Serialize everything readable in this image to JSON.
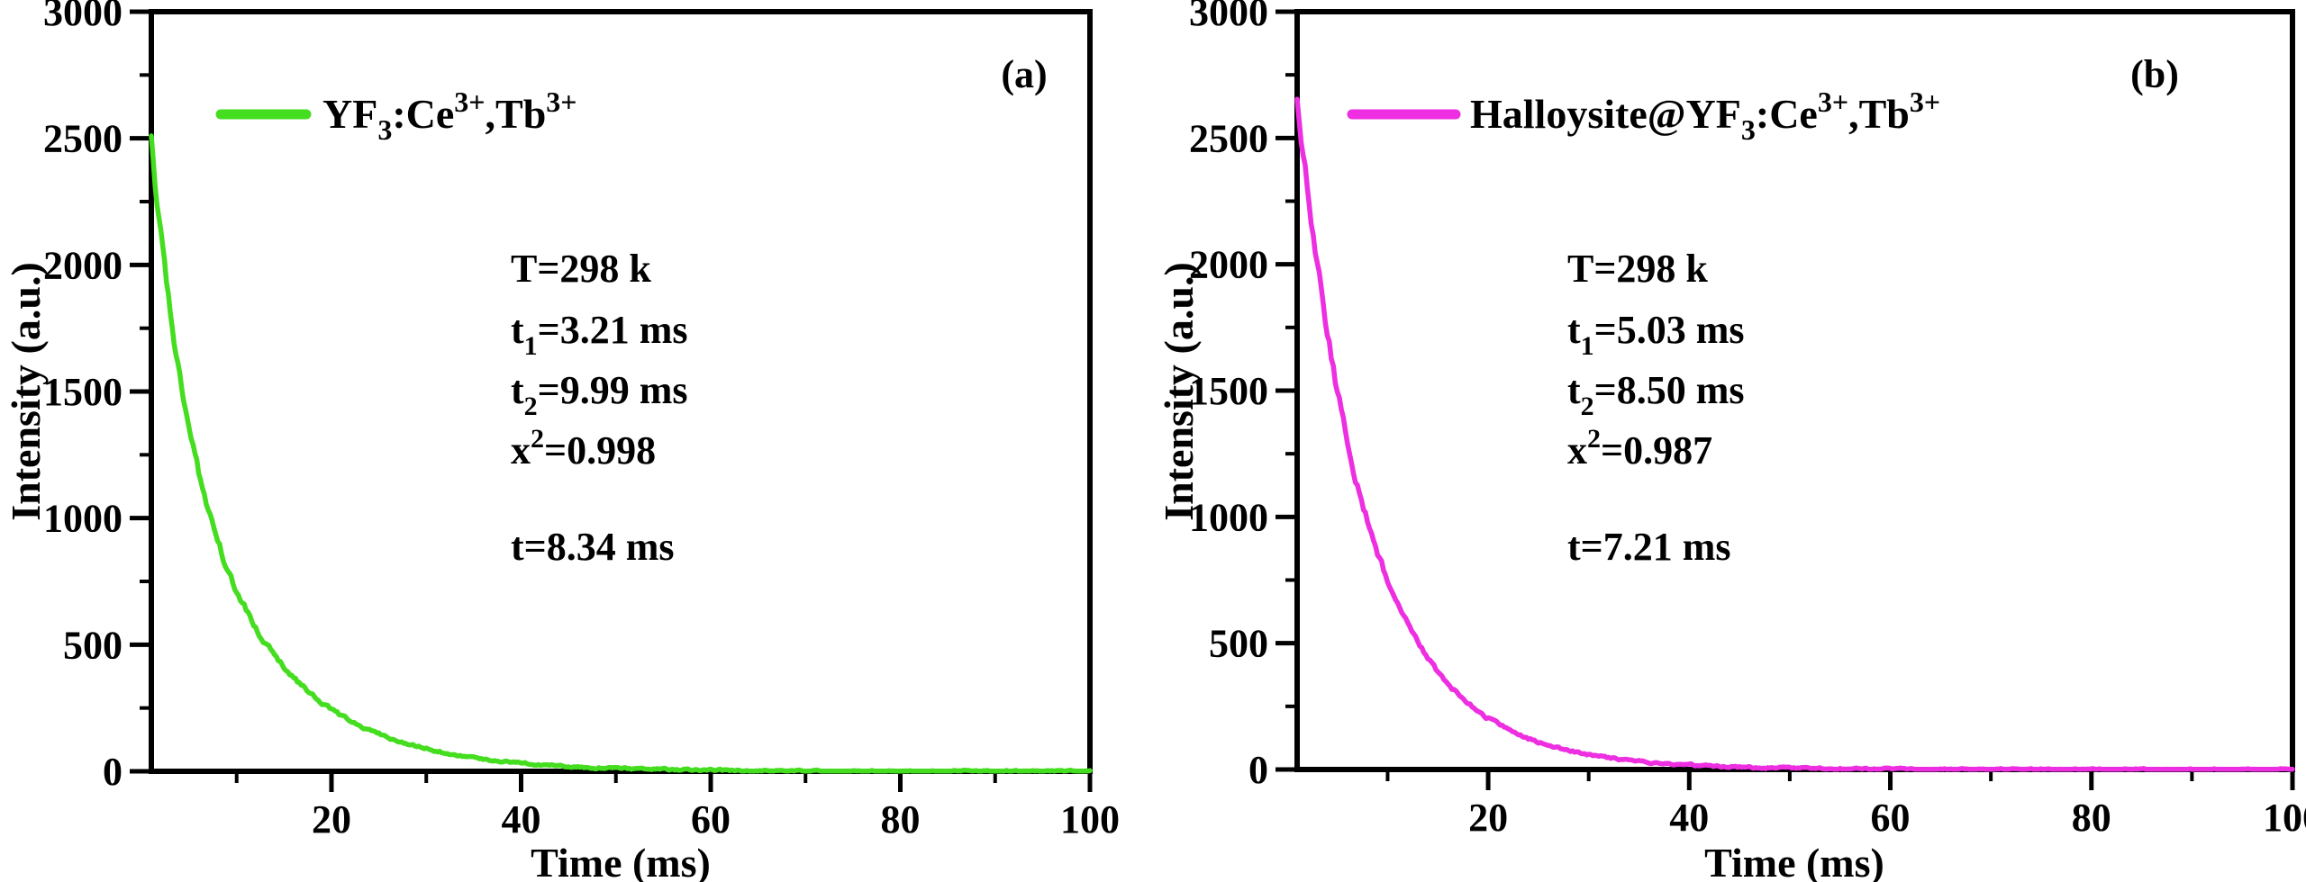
{
  "figure_background": "#ffffff",
  "axis_color": "#000000",
  "chart_data": [
    {
      "panel_label": "(a)",
      "type": "line",
      "xlabel": "Time (ms)",
      "ylabel": "Intensity (a.u.)",
      "xlim": [
        1,
        100
      ],
      "ylim": [
        0,
        3000
      ],
      "x_major_ticks": [
        20,
        40,
        60,
        80,
        100
      ],
      "x_minor_ticks": [
        10,
        30,
        50,
        70,
        90
      ],
      "y_major_ticks": [
        0,
        500,
        1000,
        1500,
        2000,
        2500,
        3000
      ],
      "y_minor_ticks": [
        250,
        750,
        1250,
        1750,
        2250,
        2750
      ],
      "grid": false,
      "legend_position": "top-left-inside",
      "series": [
        {
          "name": "YF3:Ce3+,Tb3+",
          "name_segments": [
            {
              "t": "YF"
            },
            {
              "t": "3",
              "sub": true
            },
            {
              "t": ":Ce"
            },
            {
              "t": "3+",
              "sup": true
            },
            {
              "t": ",Tb"
            },
            {
              "t": "3+",
              "sup": true
            }
          ],
          "color": "#45DD1F",
          "fit": {
            "A1": 1200,
            "tau1": 3.21,
            "A2": 1800,
            "tau2": 9.99,
            "t_start": 1,
            "t_end": 100
          },
          "noise_seed": 20230607,
          "points": [
            [
              1,
              2500
            ],
            [
              2,
              2120
            ],
            [
              3,
              1800
            ],
            [
              4,
              1550
            ],
            [
              5,
              1340
            ],
            [
              6,
              1170
            ],
            [
              7,
              1030
            ],
            [
              8,
              910
            ],
            [
              9,
              800
            ],
            [
              10,
              715
            ],
            [
              12,
              570
            ],
            [
              15,
              410
            ],
            [
              20,
              245
            ],
            [
              25,
              150
            ],
            [
              30,
              90
            ],
            [
              40,
              33
            ],
            [
              50,
              12
            ],
            [
              60,
              5
            ],
            [
              80,
              1
            ],
            [
              100,
              0
            ]
          ]
        }
      ],
      "annotations": [
        {
          "text": "T=298 k",
          "segments": [
            {
              "t": "T=298 k"
            }
          ]
        },
        {
          "text": "t1=3.21 ms",
          "segments": [
            {
              "t": "t"
            },
            {
              "t": "1",
              "sub": true
            },
            {
              "t": "=3.21 ms"
            }
          ]
        },
        {
          "text": "t2=9.99 ms",
          "segments": [
            {
              "t": "t"
            },
            {
              "t": "2",
              "sub": true
            },
            {
              "t": "=9.99 ms"
            }
          ]
        },
        {
          "text": "x2=0.998",
          "segments": [
            {
              "t": "x"
            },
            {
              "t": "2",
              "sup": true
            },
            {
              "t": "=0.998"
            }
          ]
        },
        {
          "text": "t=8.34 ms",
          "segments": [
            {
              "t": "t=8.34 ms"
            }
          ]
        }
      ]
    },
    {
      "panel_label": "(b)",
      "type": "line",
      "xlabel": "Time (ms)",
      "ylabel": "Intensity (a.u.)",
      "xlim": [
        1,
        100
      ],
      "ylim": [
        0,
        3000
      ],
      "x_major_ticks": [
        20,
        40,
        60,
        80,
        100
      ],
      "x_minor_ticks": [
        10,
        30,
        50,
        70,
        90
      ],
      "y_major_ticks": [
        0,
        500,
        1000,
        1500,
        2000,
        2500,
        3000
      ],
      "y_minor_ticks": [
        250,
        750,
        1250,
        1750,
        2250,
        2750
      ],
      "grid": false,
      "legend_position": "top-left-inside",
      "series": [
        {
          "name": "Halloysite@YF3:Ce3+,Tb3+",
          "name_segments": [
            {
              "t": "Halloysite@YF"
            },
            {
              "t": "3",
              "sub": true
            },
            {
              "t": ":Ce"
            },
            {
              "t": "3+",
              "sup": true
            },
            {
              "t": ",Tb"
            },
            {
              "t": "3+",
              "sup": true
            }
          ],
          "color": "#ED2EE1",
          "fit": {
            "A1": 1200,
            "tau1": 5.03,
            "A2": 1900,
            "tau2": 8.5,
            "t_start": 1,
            "t_end": 100
          },
          "noise_seed": 40961373,
          "points": [
            [
              1,
              2670
            ],
            [
              2,
              2310
            ],
            [
              3,
              2000
            ],
            [
              4,
              1730
            ],
            [
              5,
              1500
            ],
            [
              6,
              1300
            ],
            [
              7,
              1130
            ],
            [
              8,
              990
            ],
            [
              9,
              860
            ],
            [
              10,
              750
            ],
            [
              12,
              575
            ],
            [
              15,
              385
            ],
            [
              20,
              205
            ],
            [
              25,
              110
            ],
            [
              30,
              60
            ],
            [
              40,
              17
            ],
            [
              50,
              5
            ],
            [
              60,
              2
            ],
            [
              80,
              0
            ],
            [
              100,
              0
            ]
          ]
        }
      ],
      "annotations": [
        {
          "text": "T=298 k",
          "segments": [
            {
              "t": "T=298 k"
            }
          ]
        },
        {
          "text": "t1=5.03 ms",
          "segments": [
            {
              "t": "t"
            },
            {
              "t": "1",
              "sub": true
            },
            {
              "t": "=5.03 ms"
            }
          ]
        },
        {
          "text": "t2=8.50 ms",
          "segments": [
            {
              "t": "t"
            },
            {
              "t": "2",
              "sub": true
            },
            {
              "t": "=8.50 ms"
            }
          ]
        },
        {
          "text": "x2=0.987",
          "segments": [
            {
              "t": "x"
            },
            {
              "t": "2",
              "sup": true
            },
            {
              "t": "=0.987"
            }
          ]
        },
        {
          "text": "t=7.21 ms",
          "segments": [
            {
              "t": "t=7.21 ms"
            }
          ]
        }
      ]
    }
  ]
}
